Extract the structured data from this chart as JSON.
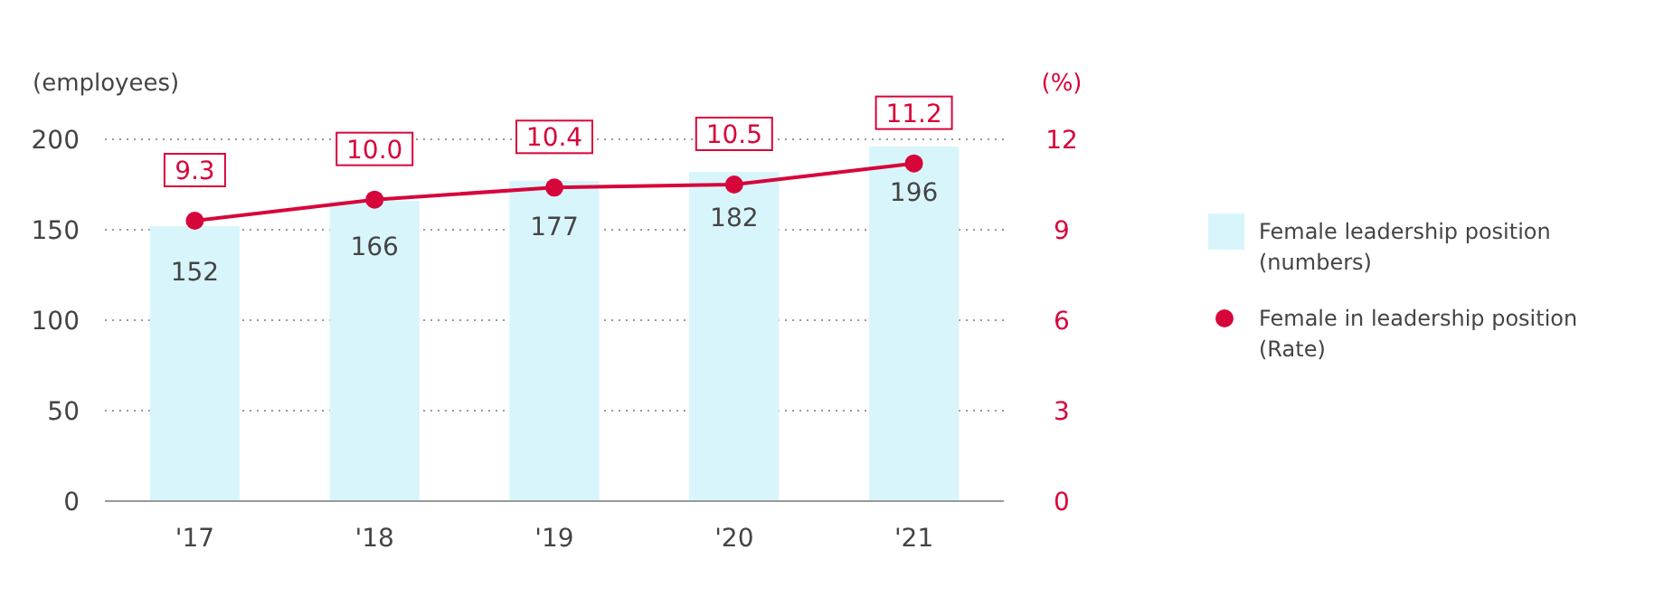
{
  "chart_data": {
    "type": "bar",
    "ylabel": "(employees)",
    "y2label": "(%)",
    "categories": [
      "'17",
      "'18",
      "'19",
      "'20",
      "'21"
    ],
    "series": [
      {
        "name": "Female leadership position (numbers)",
        "color": "#d9f5fc",
        "values": [
          152,
          166,
          177,
          182,
          196
        ]
      },
      {
        "name": "Female in leadership position (Rate)",
        "type": "line",
        "axis": "y2",
        "color": "#d7063a",
        "marker": "circle",
        "values": [
          9.3,
          10.0,
          10.4,
          10.5,
          11.2
        ],
        "value_labels": [
          "9.3",
          "10.0",
          "10.4",
          "10.5",
          "11.2"
        ]
      }
    ],
    "ylim": [
      0,
      200
    ],
    "yticks": [
      0,
      50,
      100,
      150,
      200
    ],
    "y2lim": [
      0,
      12
    ],
    "y2ticks": [
      0,
      3,
      6,
      9,
      12
    ],
    "grid": "y",
    "legend": "right",
    "data_labels": true
  }
}
